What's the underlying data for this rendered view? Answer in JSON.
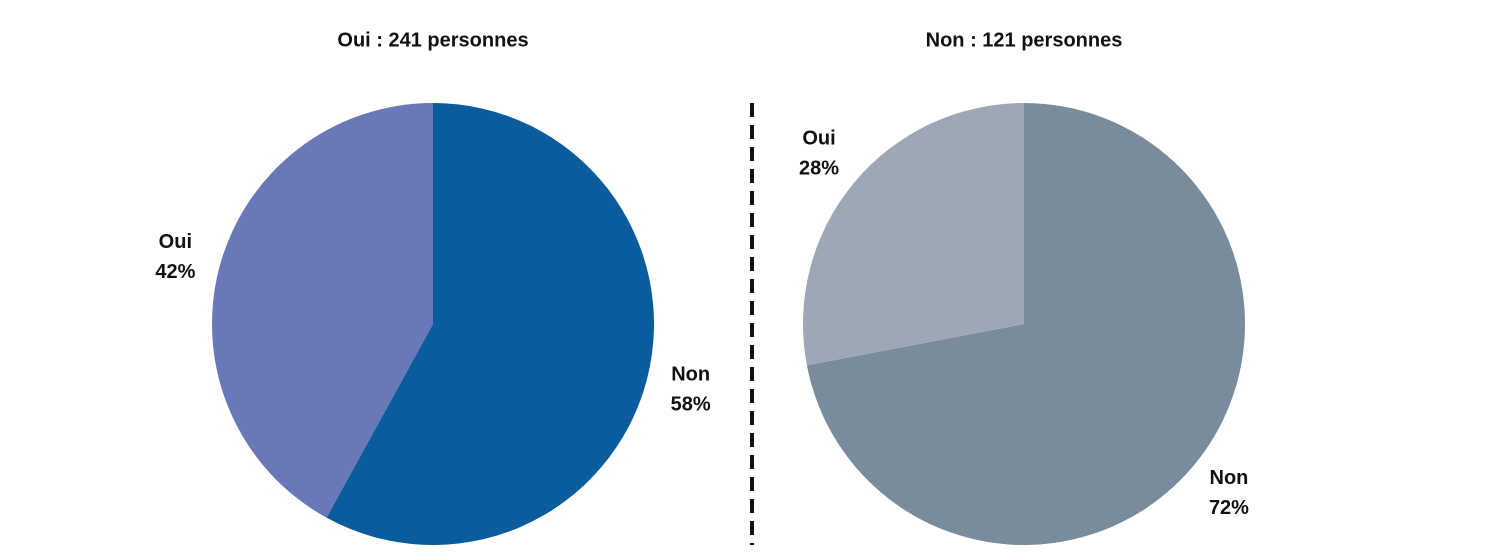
{
  "chart_data": [
    {
      "type": "pie",
      "title": "Oui : 241 personnes",
      "categories": [
        "Non",
        "Oui"
      ],
      "values": [
        58,
        42
      ],
      "value_labels": [
        "58%",
        "42%"
      ],
      "colors": [
        "#0a5c9c",
        "#6878b8"
      ]
    },
    {
      "type": "pie",
      "title": "Non : 121 personnes",
      "categories": [
        "Non",
        "Oui"
      ],
      "values": [
        72,
        28
      ],
      "value_labels": [
        "72%",
        "28%"
      ],
      "colors": [
        "#7a8c9c",
        "#9ea7b6"
      ]
    }
  ]
}
